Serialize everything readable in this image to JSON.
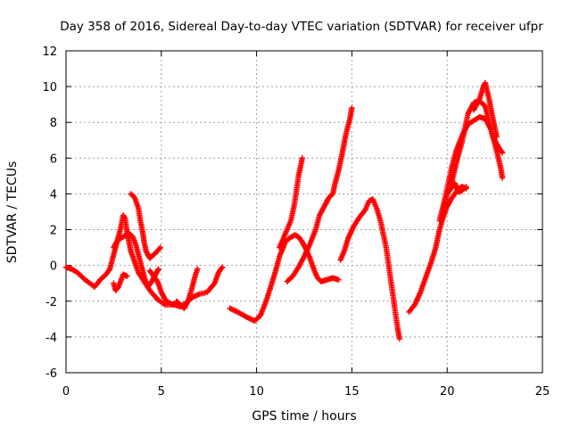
{
  "chart_data": {
    "type": "scatter",
    "title": "Day 358 of 2016, Sidereal Day-to-day VTEC variation (SDTVAR) for receiver ufpr",
    "xlabel": "GPS time / hours",
    "ylabel": "SDTVAR / TECUs",
    "xlim": [
      0,
      25
    ],
    "ylim": [
      -6,
      12
    ],
    "x_ticks": [
      "0",
      "5",
      "10",
      "15",
      "20",
      "25"
    ],
    "y_ticks": [
      "-6",
      "-4",
      "-2",
      "0",
      "2",
      "4",
      "6",
      "8",
      "10",
      "12"
    ],
    "x_tick_values": [
      0,
      5,
      10,
      15,
      20,
      25
    ],
    "y_tick_values": [
      -6,
      -4,
      -2,
      0,
      2,
      4,
      6,
      8,
      10,
      12
    ],
    "grid": true,
    "marker": "+",
    "color": "#ff0000",
    "series": [
      {
        "values": [
          [
            0.0,
            -0.1
          ],
          [
            0.3,
            -0.2
          ],
          [
            0.6,
            -0.4
          ],
          [
            1.0,
            -0.8
          ],
          [
            1.5,
            -1.2
          ],
          [
            1.8,
            -0.8
          ],
          [
            2.1,
            -0.5
          ],
          [
            2.3,
            -0.2
          ],
          [
            2.5,
            0.6
          ],
          [
            2.7,
            1.4
          ],
          [
            2.85,
            2.0
          ],
          [
            3.0,
            2.8
          ],
          [
            3.1,
            2.6
          ],
          [
            3.2,
            1.9
          ],
          [
            3.4,
            0.8
          ],
          [
            3.6,
            0.2
          ],
          [
            3.8,
            -0.4
          ],
          [
            4.1,
            -0.9
          ],
          [
            4.4,
            -1.4
          ],
          [
            4.8,
            -1.9
          ],
          [
            5.2,
            -2.2
          ],
          [
            5.6,
            -2.2
          ]
        ]
      },
      {
        "values": [
          [
            2.5,
            -1.0
          ],
          [
            2.6,
            -1.4
          ],
          [
            2.75,
            -1.2
          ],
          [
            2.9,
            -0.8
          ],
          [
            3.0,
            -0.5
          ],
          [
            3.2,
            -0.6
          ]
        ]
      },
      {
        "values": [
          [
            2.5,
            1.0
          ],
          [
            2.7,
            1.4
          ],
          [
            3.0,
            1.6
          ],
          [
            3.3,
            1.8
          ],
          [
            3.5,
            1.6
          ],
          [
            3.65,
            1.2
          ],
          [
            3.8,
            0.6
          ],
          [
            4.0,
            -0.2
          ],
          [
            4.15,
            -0.8
          ],
          [
            4.3,
            -1.2
          ],
          [
            4.5,
            -0.9
          ],
          [
            4.7,
            -0.5
          ],
          [
            4.85,
            -0.2
          ]
        ]
      },
      {
        "values": [
          [
            3.4,
            4.0
          ],
          [
            3.6,
            3.8
          ],
          [
            3.8,
            3.2
          ],
          [
            3.9,
            2.5
          ],
          [
            4.0,
            2.0
          ],
          [
            4.1,
            1.3
          ],
          [
            4.2,
            0.8
          ],
          [
            4.4,
            0.4
          ],
          [
            4.6,
            0.6
          ],
          [
            4.8,
            0.8
          ],
          [
            4.95,
            1.0
          ]
        ]
      },
      {
        "values": [
          [
            4.4,
            -0.3
          ],
          [
            4.6,
            -0.6
          ],
          [
            4.8,
            -0.9
          ],
          [
            5.0,
            -1.5
          ],
          [
            5.2,
            -1.9
          ],
          [
            5.4,
            -2.1
          ],
          [
            5.7,
            -2.2
          ],
          [
            6.0,
            -2.3
          ],
          [
            6.3,
            -2.1
          ],
          [
            6.6,
            -1.8
          ],
          [
            7.0,
            -1.6
          ],
          [
            7.4,
            -1.5
          ],
          [
            7.8,
            -1.0
          ],
          [
            8.0,
            -0.4
          ],
          [
            8.2,
            -0.1
          ]
        ]
      },
      {
        "values": [
          [
            5.8,
            -2.0
          ],
          [
            6.0,
            -2.2
          ],
          [
            6.2,
            -2.4
          ],
          [
            6.4,
            -2.0
          ],
          [
            6.6,
            -1.3
          ],
          [
            6.8,
            -0.5
          ],
          [
            6.9,
            -0.2
          ]
        ]
      },
      {
        "values": [
          [
            8.6,
            -2.4
          ],
          [
            9.0,
            -2.6
          ],
          [
            9.5,
            -2.9
          ],
          [
            9.9,
            -3.1
          ],
          [
            10.2,
            -2.8
          ],
          [
            10.5,
            -2.0
          ],
          [
            10.8,
            -1.0
          ],
          [
            11.0,
            -0.3
          ],
          [
            11.2,
            0.5
          ],
          [
            11.4,
            1.0
          ],
          [
            11.5,
            1.3
          ],
          [
            11.7,
            1.5
          ],
          [
            12.0,
            1.7
          ],
          [
            12.2,
            1.6
          ],
          [
            12.4,
            1.3
          ],
          [
            12.6,
            0.9
          ],
          [
            12.8,
            0.4
          ],
          [
            13.0,
            -0.2
          ],
          [
            13.2,
            -0.7
          ],
          [
            13.4,
            -0.9
          ]
        ]
      },
      {
        "values": [
          [
            11.2,
            1.0
          ],
          [
            11.4,
            1.5
          ],
          [
            11.6,
            2.0
          ],
          [
            11.8,
            2.5
          ],
          [
            12.0,
            3.5
          ],
          [
            12.2,
            5.0
          ],
          [
            12.4,
            6.0
          ]
        ]
      },
      {
        "values": [
          [
            11.6,
            -0.9
          ],
          [
            11.9,
            -0.6
          ],
          [
            12.2,
            -0.1
          ],
          [
            12.5,
            0.5
          ],
          [
            12.8,
            1.2
          ],
          [
            13.1,
            2.0
          ],
          [
            13.3,
            2.8
          ],
          [
            13.6,
            3.4
          ],
          [
            13.8,
            3.8
          ],
          [
            14.0,
            4.0
          ],
          [
            14.1,
            4.5
          ],
          [
            14.3,
            5.3
          ],
          [
            14.5,
            6.3
          ],
          [
            14.7,
            7.4
          ],
          [
            14.9,
            8.2
          ],
          [
            15.0,
            8.8
          ]
        ]
      },
      {
        "values": [
          [
            13.4,
            -0.9
          ],
          [
            13.7,
            -0.8
          ],
          [
            14.0,
            -0.7
          ],
          [
            14.3,
            -0.8
          ]
        ]
      },
      {
        "values": [
          [
            14.4,
            0.3
          ],
          [
            14.6,
            0.8
          ],
          [
            14.8,
            1.5
          ],
          [
            15.1,
            2.2
          ],
          [
            15.4,
            2.7
          ],
          [
            15.7,
            3.1
          ],
          [
            15.9,
            3.6
          ],
          [
            16.1,
            3.7
          ],
          [
            16.3,
            3.2
          ],
          [
            16.5,
            2.5
          ],
          [
            16.8,
            1.0
          ],
          [
            17.0,
            -0.5
          ],
          [
            17.2,
            -2.0
          ],
          [
            17.4,
            -3.5
          ],
          [
            17.5,
            -4.1
          ]
        ]
      },
      {
        "values": [
          [
            18.0,
            -2.6
          ],
          [
            18.3,
            -2.2
          ],
          [
            18.6,
            -1.5
          ],
          [
            18.9,
            -0.6
          ],
          [
            19.2,
            0.3
          ],
          [
            19.4,
            1.0
          ],
          [
            19.6,
            2.0
          ],
          [
            19.8,
            2.7
          ],
          [
            20.0,
            3.3
          ],
          [
            20.2,
            3.7
          ],
          [
            20.4,
            4.0
          ],
          [
            20.6,
            4.3
          ],
          [
            20.8,
            4.4
          ],
          [
            21.0,
            4.3
          ]
        ]
      },
      {
        "values": [
          [
            19.8,
            3.2
          ],
          [
            20.0,
            4.0
          ],
          [
            20.2,
            4.3
          ],
          [
            20.4,
            4.6
          ],
          [
            20.6,
            4.1
          ],
          [
            20.8,
            4.2
          ],
          [
            21.0,
            4.4
          ]
        ]
      },
      {
        "values": [
          [
            19.6,
            2.5
          ],
          [
            19.9,
            3.8
          ],
          [
            20.2,
            5.3
          ],
          [
            20.5,
            6.5
          ],
          [
            20.8,
            7.3
          ],
          [
            21.1,
            7.9
          ],
          [
            21.4,
            8.1
          ],
          [
            21.7,
            8.3
          ],
          [
            22.0,
            8.2
          ],
          [
            22.3,
            7.6
          ],
          [
            22.6,
            6.4
          ],
          [
            22.8,
            5.5
          ],
          [
            22.9,
            4.9
          ]
        ]
      },
      {
        "values": [
          [
            20.2,
            4.5
          ],
          [
            20.5,
            5.8
          ],
          [
            20.8,
            7.0
          ],
          [
            21.1,
            8.5
          ],
          [
            21.4,
            9.1
          ],
          [
            21.7,
            9.2
          ],
          [
            22.0,
            8.9
          ],
          [
            22.2,
            8.0
          ],
          [
            22.4,
            7.2
          ],
          [
            22.7,
            6.6
          ],
          [
            22.9,
            6.3
          ]
        ]
      },
      {
        "values": [
          [
            21.4,
            8.7
          ],
          [
            21.7,
            9.3
          ],
          [
            21.9,
            10.0
          ],
          [
            22.0,
            10.2
          ],
          [
            22.2,
            9.3
          ],
          [
            22.4,
            8.2
          ],
          [
            22.6,
            7.2
          ]
        ]
      }
    ]
  }
}
